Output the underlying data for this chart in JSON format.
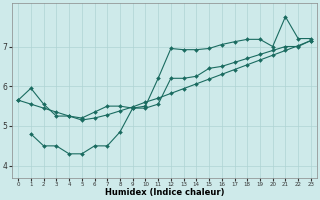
{
  "xlabel": "Humidex (Indice chaleur)",
  "background_color": "#ceeaea",
  "line_color": "#1a6b60",
  "grid_color": "#afd4d4",
  "xlim": [
    -0.5,
    23.5
  ],
  "ylim": [
    3.7,
    8.1
  ],
  "yticks": [
    4,
    5,
    6,
    7
  ],
  "xticks": [
    0,
    1,
    2,
    3,
    4,
    5,
    6,
    7,
    8,
    9,
    10,
    11,
    12,
    13,
    14,
    15,
    16,
    17,
    18,
    19,
    20,
    21,
    22,
    23
  ],
  "line1_x": [
    0,
    1,
    2,
    3,
    4,
    5,
    6,
    7,
    8,
    9,
    10,
    11,
    12,
    13,
    14,
    15,
    16,
    17,
    18,
    19,
    20,
    21,
    22,
    23
  ],
  "line1_y": [
    5.65,
    5.55,
    5.45,
    5.35,
    5.25,
    5.15,
    5.2,
    5.28,
    5.38,
    5.48,
    5.6,
    5.7,
    5.82,
    5.94,
    6.06,
    6.18,
    6.3,
    6.42,
    6.54,
    6.66,
    6.78,
    6.9,
    7.02,
    7.15
  ],
  "line2_x": [
    0,
    1,
    2,
    3,
    4,
    5,
    6,
    7,
    8,
    9,
    10,
    11,
    12,
    13,
    14,
    15,
    16,
    17,
    18,
    19,
    20,
    21,
    22,
    23
  ],
  "line2_y": [
    5.65,
    5.95,
    5.55,
    5.25,
    5.25,
    5.2,
    5.35,
    5.5,
    5.5,
    5.45,
    5.45,
    5.55,
    6.2,
    6.2,
    6.25,
    6.45,
    6.5,
    6.6,
    6.7,
    6.8,
    6.9,
    7.0,
    7.0,
    7.15
  ],
  "line3_x": [
    1,
    2,
    3,
    4,
    5,
    6,
    7,
    8,
    9,
    10,
    11,
    12,
    13,
    14,
    15,
    16,
    17,
    18,
    19,
    20,
    21,
    22,
    23
  ],
  "line3_y": [
    4.8,
    4.5,
    4.5,
    4.3,
    4.3,
    4.5,
    4.5,
    4.85,
    5.45,
    5.5,
    6.2,
    6.95,
    6.92,
    6.92,
    6.95,
    7.05,
    7.12,
    7.18,
    7.18,
    7.0,
    7.75,
    7.2,
    7.2
  ],
  "figsize": [
    3.2,
    2.0
  ],
  "dpi": 100
}
